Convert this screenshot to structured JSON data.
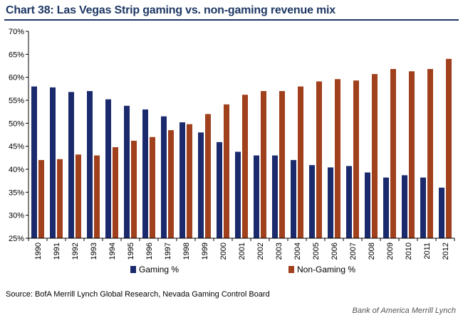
{
  "header": {
    "title": "Chart 38: Las Vegas Strip gaming vs. non-gaming revenue mix"
  },
  "footer": {
    "source": "Source: BofA Merrill Lynch Global Research, Nevada Gaming Control Board",
    "brand": "Bank of America Merrill Lynch"
  },
  "chart_data": {
    "type": "bar",
    "title": "Chart 38: Las Vegas Strip gaming vs. non-gaming revenue mix",
    "xlabel": "",
    "ylabel": "",
    "ylim": [
      25,
      70
    ],
    "yticks": [
      "25%",
      "30%",
      "35%",
      "40%",
      "45%",
      "50%",
      "55%",
      "60%",
      "65%",
      "70%"
    ],
    "legend_position": "bottom",
    "grid": false,
    "categories": [
      "1990",
      "1991",
      "1992",
      "1993",
      "1994",
      "1995",
      "1996",
      "1997",
      "1998",
      "1999",
      "2000",
      "2001",
      "2002",
      "2003",
      "2004",
      "2005",
      "2006",
      "2007",
      "2008",
      "2009",
      "2010",
      "2011",
      "2012"
    ],
    "series": [
      {
        "name": "Gaming %",
        "color": "#1a2a6c",
        "values": [
          58.0,
          57.8,
          56.8,
          57.0,
          55.2,
          53.8,
          53.0,
          51.5,
          50.2,
          48.0,
          45.9,
          43.8,
          43.0,
          43.0,
          42.0,
          40.9,
          40.4,
          40.7,
          39.3,
          38.2,
          38.7,
          38.2,
          36.0
        ]
      },
      {
        "name": "Non-Gaming %",
        "color": "#a0401c",
        "values": [
          42.0,
          42.2,
          43.2,
          43.0,
          44.8,
          46.2,
          47.0,
          48.5,
          49.8,
          52.0,
          54.1,
          56.2,
          57.0,
          57.0,
          58.0,
          59.1,
          59.6,
          59.3,
          60.7,
          61.8,
          61.3,
          61.8,
          64.0
        ]
      }
    ]
  }
}
